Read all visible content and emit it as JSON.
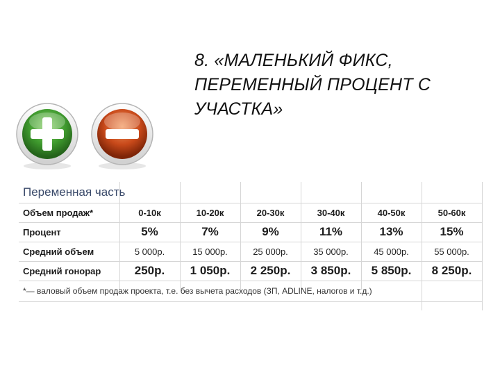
{
  "slide": {
    "title": "8. «МАЛЕНЬКИЙ ФИКС, ПЕРЕМЕННЫЙ ПРОЦЕНТ С УЧАСТКА»"
  },
  "icons": {
    "plus": "plus-circle-icon",
    "minus": "minus-circle-icon",
    "plus_color": "#3f9a2e",
    "minus_color": "#c8491a"
  },
  "table": {
    "part_title": "Переменная часть",
    "rows": {
      "volume": {
        "label": "Объем продаж*",
        "values": [
          "0-10к",
          "10-20к",
          "20-30к",
          "30-40к",
          "40-50к",
          "50-60к"
        ]
      },
      "percent": {
        "label": "Процент",
        "values": [
          "5%",
          "7%",
          "9%",
          "11%",
          "13%",
          "15%"
        ]
      },
      "avg_volume": {
        "label": "Средний объем",
        "values": [
          "5 000р.",
          "15 000р.",
          "25 000р.",
          "35 000р.",
          "45 000р.",
          "55 000р."
        ]
      },
      "avg_fee": {
        "label": "Средний гонорар",
        "values": [
          "250р.",
          "1 050р.",
          "2 250р.",
          "3 850р.",
          "5 850р.",
          "8 250р."
        ]
      }
    },
    "note": "*— валовый объем продаж проекта, т.е. без вычета расходов (ЗП, ADLINE, налогов и т.д.)"
  }
}
